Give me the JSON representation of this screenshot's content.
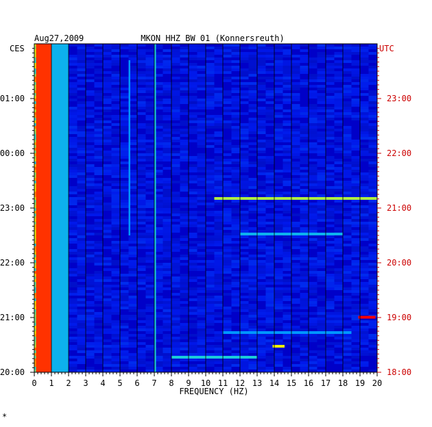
{
  "header": {
    "date": "Aug27,2009",
    "station": "MKON HHZ BW 01 (Konnersreuth)"
  },
  "chart_data": {
    "type": "heatmap",
    "title": "MKON HHZ BW 01 (Konnersreuth)",
    "date": "Aug27,2009",
    "xlabel": "FREQUENCY (HZ)",
    "xlim": [
      0,
      20
    ],
    "x_ticks": [
      "0",
      "1",
      "2",
      "3",
      "4",
      "5",
      "6",
      "7",
      "8",
      "9",
      "10",
      "11",
      "12",
      "13",
      "14",
      "15",
      "16",
      "17",
      "18",
      "19",
      "20"
    ],
    "left_axis": {
      "zone": "CES",
      "ticks": [
        "01:00",
        "00:00",
        "23:00",
        "22:00",
        "21:00",
        "20:00"
      ]
    },
    "right_axis": {
      "zone": "UTC",
      "ticks": [
        "23:00",
        "22:00",
        "21:00",
        "20:00",
        "19:00",
        "18:00"
      ],
      "color": "#cc0000"
    },
    "time_range_hours": [
      0,
      6
    ],
    "colors": {
      "background": "#0000c8",
      "low": "#0018e6",
      "mid": "#18a0f0",
      "high": "#f0f000",
      "peak": "#ff0000",
      "axis_right": "#cc0000"
    },
    "features": [
      {
        "f0": 0.1,
        "f1": 1.0,
        "t0": 0.0,
        "t1": 6.0,
        "level": 0.95
      },
      {
        "f0": 1.0,
        "f1": 2.0,
        "t0": 0.0,
        "t1": 6.0,
        "level": 0.5
      },
      {
        "f0": 7.0,
        "f1": 7.1,
        "t0": 0.0,
        "t1": 6.0,
        "level": 0.55
      },
      {
        "f0": 5.5,
        "f1": 5.6,
        "t0": 0.3,
        "t1": 3.5,
        "level": 0.45
      },
      {
        "f0": 10.5,
        "f1": 20.0,
        "t0": 2.8,
        "t1": 2.85,
        "level": 0.7
      },
      {
        "f0": 12.0,
        "f1": 18.0,
        "t0": 3.45,
        "t1": 3.5,
        "level": 0.5
      },
      {
        "f0": 18.9,
        "f1": 19.9,
        "t0": 4.97,
        "t1": 5.02,
        "level": 1.0
      },
      {
        "f0": 8.0,
        "f1": 13.0,
        "t0": 5.7,
        "t1": 5.75,
        "level": 0.55
      },
      {
        "f0": 13.9,
        "f1": 14.6,
        "t0": 5.5,
        "t1": 5.55,
        "level": 0.75
      },
      {
        "f0": 11.0,
        "f1": 18.5,
        "t0": 5.25,
        "t1": 5.3,
        "level": 0.45
      }
    ]
  },
  "footnote": "*"
}
